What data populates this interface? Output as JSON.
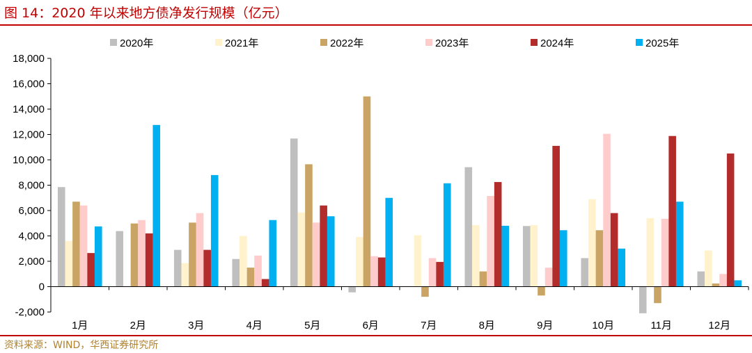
{
  "header": {
    "title": "图 14：2020 年以来地方债净发行规模（亿元）"
  },
  "footer": {
    "source": "资料来源：WIND，华西证券研究所"
  },
  "colors": {
    "title": "#c00000",
    "source": "#b0812e",
    "series": [
      "#bfbfbf",
      "#fff2cc",
      "#c9a464",
      "#ffcccc",
      "#b22c2c",
      "#00b0f0"
    ]
  },
  "chart_data": {
    "type": "bar",
    "title": "2020 年以来地方债净发行规模（亿元）",
    "xlabel": "",
    "ylabel": "",
    "categories": [
      "1月",
      "2月",
      "3月",
      "4月",
      "5月",
      "6月",
      "7月",
      "8月",
      "9月",
      "10月",
      "11月",
      "12月"
    ],
    "ylim": [
      -2000,
      18000
    ],
    "yticks": [
      -2000,
      0,
      2000,
      4000,
      6000,
      8000,
      10000,
      12000,
      14000,
      16000,
      18000
    ],
    "ytick_labels": [
      "-2,000",
      "0",
      "2,000",
      "4,000",
      "6,000",
      "8,000",
      "10,000",
      "12,000",
      "14,000",
      "16,000",
      "18,000"
    ],
    "legend_position": "top",
    "grid": false,
    "series": [
      {
        "name": "2020年",
        "values": [
          7850,
          4380,
          2900,
          2180,
          11680,
          -450,
          0,
          9420,
          4780,
          2250,
          -2100,
          1200
        ]
      },
      {
        "name": "2021年",
        "values": [
          3600,
          0,
          1850,
          4000,
          5850,
          3920,
          4050,
          4850,
          4850,
          6900,
          5400,
          2850
        ]
      },
      {
        "name": "2022年",
        "values": [
          6700,
          4980,
          5050,
          1500,
          9650,
          15000,
          -800,
          1200,
          -700,
          4450,
          -1300,
          250
        ]
      },
      {
        "name": "2023年",
        "values": [
          6400,
          5250,
          5800,
          2450,
          5050,
          2400,
          2250,
          7150,
          1500,
          12050,
          5350,
          1000
        ]
      },
      {
        "name": "2024年",
        "values": [
          2650,
          4200,
          2900,
          600,
          6400,
          2300,
          1950,
          8250,
          11100,
          5800,
          11880,
          10500
        ]
      },
      {
        "name": "2025年",
        "values": [
          4750,
          12750,
          8800,
          5250,
          5550,
          7000,
          8150,
          4800,
          4450,
          3000,
          6700,
          500
        ]
      }
    ]
  }
}
